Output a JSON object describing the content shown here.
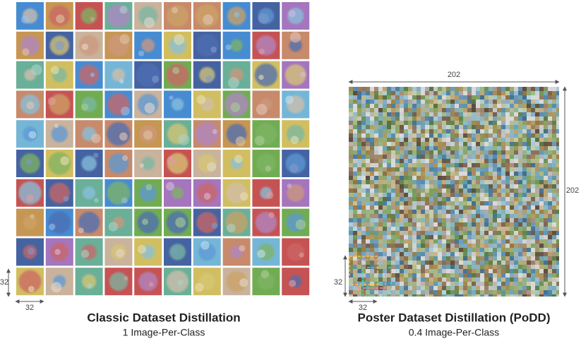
{
  "left_panel": {
    "height_label": "32",
    "width_label": "32",
    "title": "Classic Dataset Distillation",
    "subtitle": "1 Image-Per-Class"
  },
  "right_panel": {
    "width_label": "202",
    "height_label": "202",
    "patch_height_label": "32",
    "patch_width_label": "32",
    "title": "Poster Dataset Distillation (PoDD)",
    "subtitle": "0.4 Image-Per-Class"
  }
}
